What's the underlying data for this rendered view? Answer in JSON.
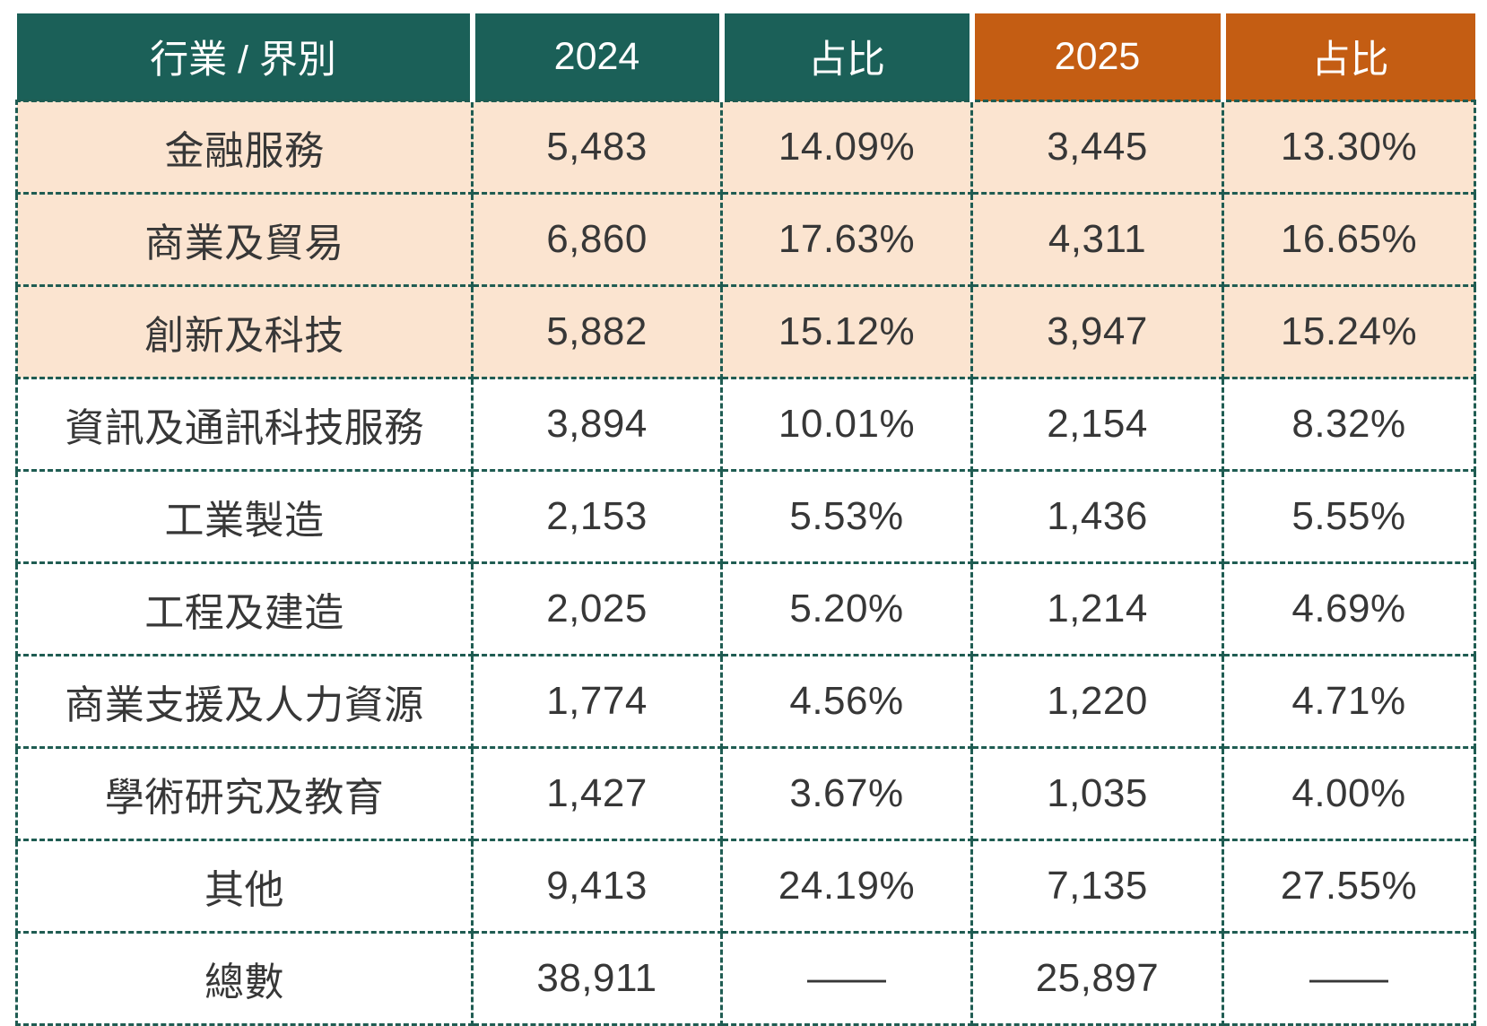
{
  "chart_data": {
    "type": "table",
    "columns": [
      {
        "id": "industry",
        "label": "行業 / 界別",
        "header_color": "teal"
      },
      {
        "id": "y2024",
        "label": "2024",
        "header_color": "teal"
      },
      {
        "id": "share2024",
        "label": "占比",
        "header_color": "teal"
      },
      {
        "id": "y2025",
        "label": "2025",
        "header_color": "orange"
      },
      {
        "id": "share2025",
        "label": "占比",
        "header_color": "orange"
      }
    ],
    "rows": [
      {
        "industry": "金融服務",
        "y2024": "5,483",
        "share2024": "14.09%",
        "y2025": "3,445",
        "share2025": "13.30%",
        "highlighted": true,
        "is_total": false
      },
      {
        "industry": "商業及貿易",
        "y2024": "6,860",
        "share2024": "17.63%",
        "y2025": "4,311",
        "share2025": "16.65%",
        "highlighted": true,
        "is_total": false
      },
      {
        "industry": "創新及科技",
        "y2024": "5,882",
        "share2024": "15.12%",
        "y2025": "3,947",
        "share2025": "15.24%",
        "highlighted": true,
        "is_total": false
      },
      {
        "industry": "資訊及通訊科技服務",
        "y2024": "3,894",
        "share2024": "10.01%",
        "y2025": "2,154",
        "share2025": "8.32%",
        "highlighted": false,
        "is_total": false
      },
      {
        "industry": "工業製造",
        "y2024": "2,153",
        "share2024": "5.53%",
        "y2025": "1,436",
        "share2025": "5.55%",
        "highlighted": false,
        "is_total": false
      },
      {
        "industry": "工程及建造",
        "y2024": "2,025",
        "share2024": "5.20%",
        "y2025": "1,214",
        "share2025": "4.69%",
        "highlighted": false,
        "is_total": false
      },
      {
        "industry": "商業支援及人力資源",
        "y2024": "1,774",
        "share2024": "4.56%",
        "y2025": "1,220",
        "share2025": "4.71%",
        "highlighted": false,
        "is_total": false
      },
      {
        "industry": "學術研究及教育",
        "y2024": "1,427",
        "share2024": "3.67%",
        "y2025": "1,035",
        "share2025": "4.00%",
        "highlighted": false,
        "is_total": false
      },
      {
        "industry": "其他",
        "y2024": "9,413",
        "share2024": "24.19%",
        "y2025": "7,135",
        "share2025": "27.55%",
        "highlighted": false,
        "is_total": false
      },
      {
        "industry": "總數",
        "y2024": "38,911",
        "share2024": "——",
        "y2025": "25,897",
        "share2025": "——",
        "highlighted": false,
        "is_total": true
      }
    ]
  },
  "colors": {
    "header_teal": "#1B6058",
    "header_orange": "#C45D13",
    "highlight_row_bg": "#FBE4D0",
    "dashed_border": "#1F5C52",
    "body_text": "#373737",
    "header_text": "#FFFFFF"
  }
}
